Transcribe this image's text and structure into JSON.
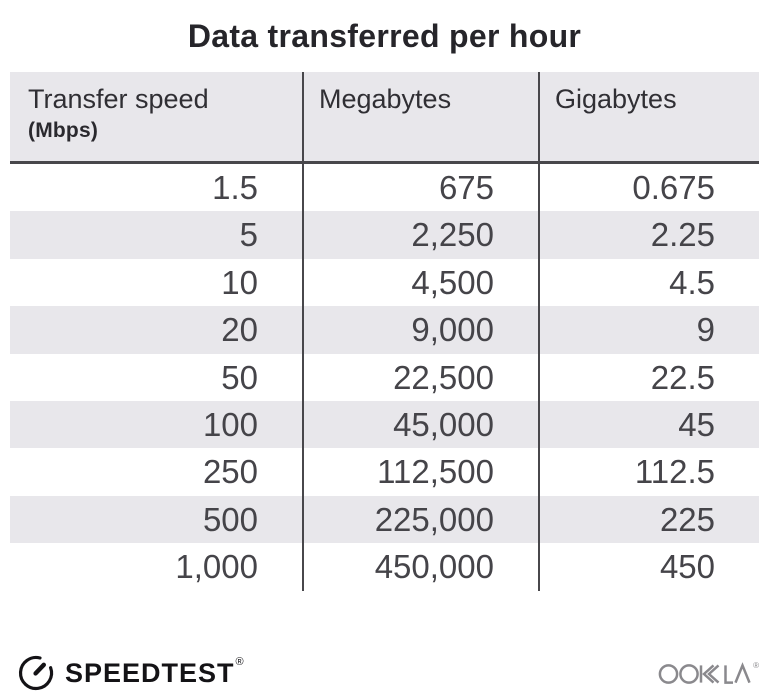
{
  "title": "Data transferred per hour",
  "chart_data": {
    "type": "table",
    "title": "Data transferred per hour",
    "columns": [
      "Transfer speed (Mbps)",
      "Megabytes",
      "Gigabytes"
    ],
    "rows": [
      {
        "transfer_speed_mbps": 1.5,
        "megabytes": 675,
        "gigabytes": 0.675
      },
      {
        "transfer_speed_mbps": 5,
        "megabytes": 2250,
        "gigabytes": 2.25
      },
      {
        "transfer_speed_mbps": 10,
        "megabytes": 4500,
        "gigabytes": 4.5
      },
      {
        "transfer_speed_mbps": 20,
        "megabytes": 9000,
        "gigabytes": 9
      },
      {
        "transfer_speed_mbps": 50,
        "megabytes": 22500,
        "gigabytes": 22.5
      },
      {
        "transfer_speed_mbps": 100,
        "megabytes": 45000,
        "gigabytes": 45
      },
      {
        "transfer_speed_mbps": 250,
        "megabytes": 112500,
        "gigabytes": 112.5
      },
      {
        "transfer_speed_mbps": 500,
        "megabytes": 225000,
        "gigabytes": 225
      },
      {
        "transfer_speed_mbps": 1000,
        "megabytes": 450000,
        "gigabytes": 450
      }
    ]
  },
  "table": {
    "columns": [
      {
        "label": "Transfer speed",
        "sublabel": "(Mbps)"
      },
      {
        "label": "Megabytes"
      },
      {
        "label": "Gigabytes"
      }
    ],
    "rows": [
      [
        "1.5",
        "675",
        "0.675"
      ],
      [
        "5",
        "2,250",
        "2.25"
      ],
      [
        "10",
        "4,500",
        "4.5"
      ],
      [
        "20",
        "9,000",
        "9"
      ],
      [
        "50",
        "22,500",
        "22.5"
      ],
      [
        "100",
        "45,000",
        "45"
      ],
      [
        "250",
        "112,500",
        "112.5"
      ],
      [
        "500",
        "225,000",
        "225"
      ],
      [
        "1,000",
        "450,000",
        "450"
      ]
    ]
  },
  "footer": {
    "speedtest_label": "SPEEDTEST",
    "speedtest_trademark": "®",
    "ookla_label": "OOKLA",
    "ookla_trademark": "®"
  },
  "colors": {
    "row_alt_background": "#e8e7eb",
    "divider_line": "#48474b",
    "title_text": "#26252a",
    "cell_text": "#454449",
    "speedtest_black": "#141316",
    "ookla_gray": "#8a898d"
  }
}
